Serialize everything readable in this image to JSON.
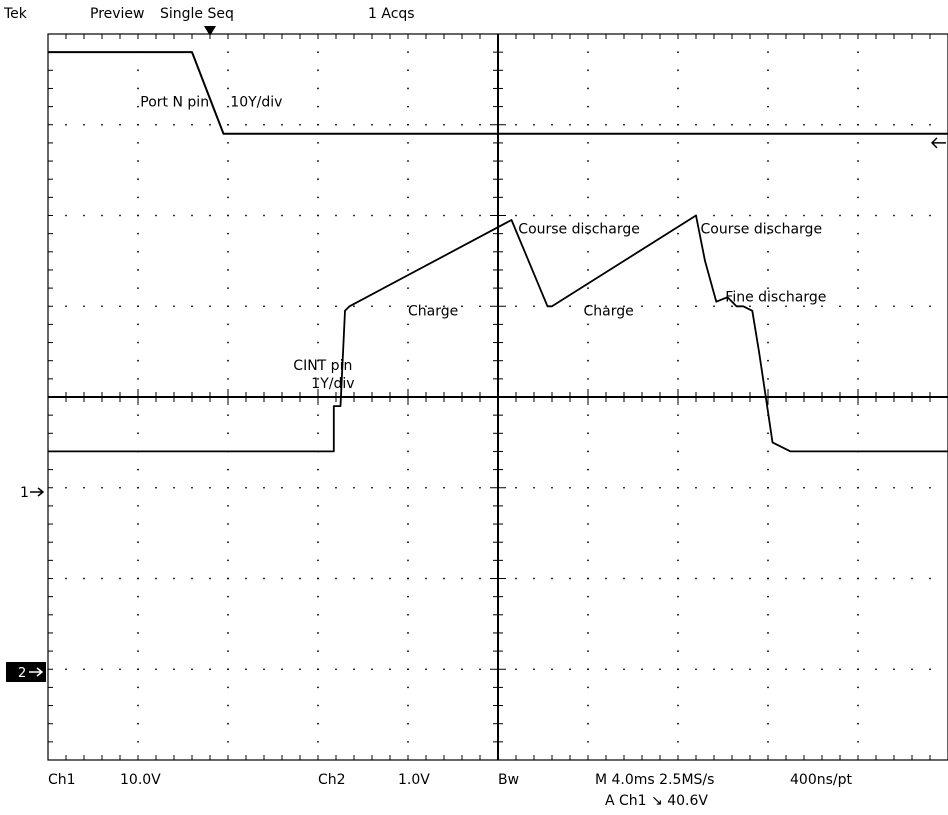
{
  "header": {
    "brand": "Tek",
    "mode": "Preview",
    "acquisition": "Single Seq",
    "acq_count": "1 Acqs"
  },
  "footer": {
    "ch1_label": "Ch1",
    "ch1_scale": "10.0V",
    "ch2_label": "Ch2",
    "ch2_scale": "1.0V",
    "bw_label": "Bw",
    "timebase": "M 4.0ms 2.5MS/s",
    "resolution": "400ns/pt",
    "trigger": "A  Ch1  ↘  40.6V"
  },
  "markers": {
    "ch1": "1",
    "ch2": "2"
  },
  "chart_data": {
    "type": "line",
    "title": "",
    "xlabel": "",
    "ylabel": "",
    "xlim": [
      -20,
      20
    ],
    "ylim": [
      -4,
      4
    ],
    "grid": true,
    "series": [
      {
        "name": "Port N pin",
        "x": [
          -20,
          -13.6,
          -12.2,
          20
        ],
        "y": [
          3.8,
          3.8,
          2.9,
          2.9
        ]
      },
      {
        "name": "CINT pin",
        "x": [
          -20,
          -7.3,
          -7.3,
          -7.0,
          -6.8,
          -6.6,
          0.6,
          2.2,
          2.4,
          8.8,
          9.2,
          9.7,
          10.2,
          10.6,
          10.9,
          11.3,
          11.6,
          11.9,
          12.2,
          13.0,
          20
        ],
        "y": [
          -0.6,
          -0.6,
          -0.1,
          -0.1,
          0.95,
          1.0,
          1.95,
          1.0,
          1.0,
          2.0,
          1.5,
          1.05,
          1.1,
          1.0,
          1.0,
          0.95,
          0.5,
          0.0,
          -0.5,
          -0.6,
          -0.6
        ]
      }
    ],
    "annotations": [
      {
        "text": "Port N pin",
        "x": -15.9,
        "y": 3.2
      },
      {
        "text": "10Y/div",
        "x": -11.9,
        "y": 3.2
      },
      {
        "text": "Course discharge",
        "x": 0.9,
        "y": 1.8
      },
      {
        "text": "Course discharge",
        "x": 9.0,
        "y": 1.8
      },
      {
        "text": "Charge",
        "x": -4.0,
        "y": 0.9
      },
      {
        "text": "Charge",
        "x": 3.8,
        "y": 0.9
      },
      {
        "text": "Fine discharge",
        "x": 10.1,
        "y": 1.05
      },
      {
        "text": "CINT pin",
        "x": -9.1,
        "y": 0.3
      },
      {
        "text": "1Y/div",
        "x": -8.3,
        "y": 0.1
      }
    ],
    "trigger_time": -12.8,
    "ref_level": 2.8
  }
}
